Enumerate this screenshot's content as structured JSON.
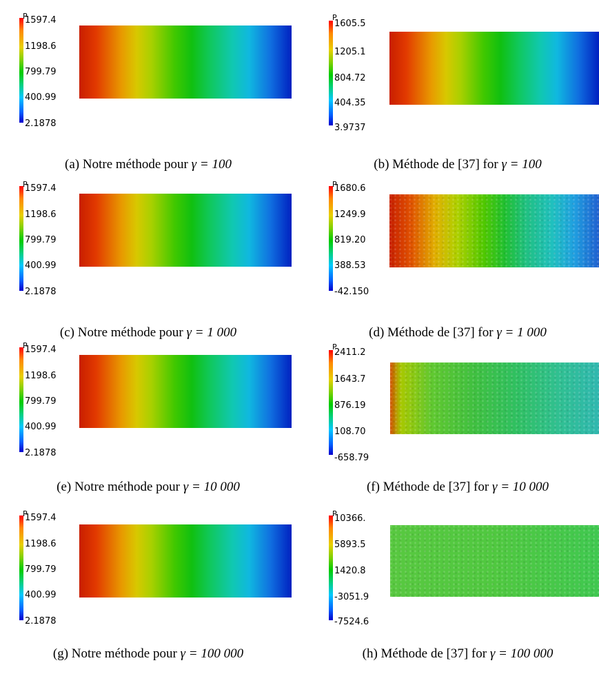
{
  "panels": [
    {
      "id": "a",
      "var_label": "P",
      "ticks": [
        "1597.4",
        "1198.6",
        "799.79",
        "400.99",
        "2.1878"
      ],
      "caption": "(a)  Notre méthode pour",
      "gamma": "γ = 100"
    },
    {
      "id": "b",
      "var_label": "P",
      "ticks": [
        "1605.5",
        "1205.1",
        "804.72",
        "404.35",
        "3.9737"
      ],
      "caption": "(b)  Méthode de [37] for",
      "gamma": "γ = 100"
    },
    {
      "id": "c",
      "var_label": "P",
      "ticks": [
        "1597.4",
        "1198.6",
        "799.79",
        "400.99",
        "2.1878"
      ],
      "caption": "(c)  Notre méthode pour",
      "gamma": "γ = 1 000"
    },
    {
      "id": "d",
      "var_label": "P",
      "ticks": [
        "1680.6",
        "1249.9",
        "819.20",
        "388.53",
        "-42.150"
      ],
      "caption": "(d)  Méthode de [37] for",
      "gamma": "γ = 1 000"
    },
    {
      "id": "e",
      "var_label": "P",
      "ticks": [
        "1597.4",
        "1198.6",
        "799.79",
        "400.99",
        "2.1878"
      ],
      "caption": "(e)  Notre méthode pour",
      "gamma": "γ = 10 000"
    },
    {
      "id": "f",
      "var_label": "P",
      "ticks": [
        "2411.2",
        "1643.7",
        "876.19",
        "108.70",
        "-658.79"
      ],
      "caption": "(f)  Méthode de [37] for",
      "gamma": "γ = 10 000"
    },
    {
      "id": "g",
      "var_label": "P",
      "ticks": [
        "1597.4",
        "1198.6",
        "799.79",
        "400.99",
        "2.1878"
      ],
      "caption": "(g)  Notre méthode pour",
      "gamma": "γ = 100 000"
    },
    {
      "id": "h",
      "var_label": "P",
      "ticks": [
        "10366.",
        "5893.5",
        "1420.8",
        "-3051.9",
        "-7524.6"
      ],
      "caption": "(h)  Méthode de [37] for",
      "gamma": "γ = 100 000"
    }
  ]
}
